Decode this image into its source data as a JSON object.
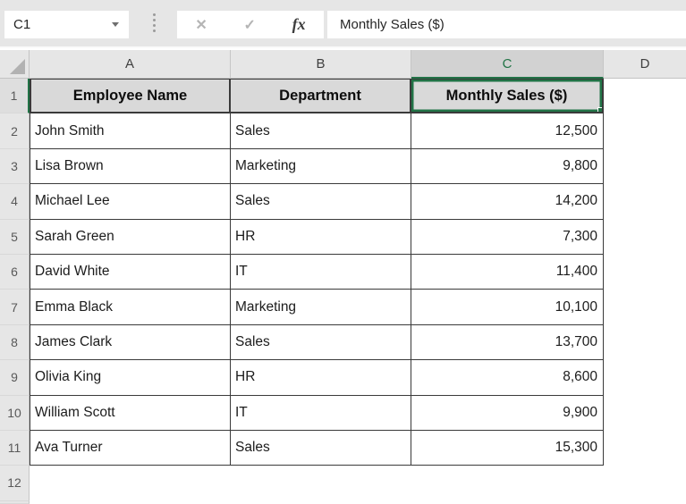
{
  "formula_bar": {
    "name_box_value": "C1",
    "cancel_icon": "✕",
    "enter_icon": "✓",
    "fx_label": "fx",
    "formula_text": "Monthly Sales ($)"
  },
  "grid": {
    "column_headers": [
      "A",
      "B",
      "C",
      "D"
    ],
    "active_column": "C",
    "active_cell": "C1",
    "row_numbers": [
      "1",
      "2",
      "3",
      "4",
      "5",
      "6",
      "7",
      "8",
      "9",
      "10",
      "11",
      "12"
    ]
  },
  "table": {
    "headers": [
      "Employee Name",
      "Department",
      "Monthly Sales ($)"
    ],
    "rows": [
      {
        "name": "John Smith",
        "dept": "Sales",
        "sales": "12,500"
      },
      {
        "name": "Lisa Brown",
        "dept": "Marketing",
        "sales": "9,800"
      },
      {
        "name": "Michael Lee",
        "dept": "Sales",
        "sales": "14,200"
      },
      {
        "name": "Sarah Green",
        "dept": "HR",
        "sales": "7,300"
      },
      {
        "name": "David White",
        "dept": "IT",
        "sales": "11,400"
      },
      {
        "name": "Emma Black",
        "dept": "Marketing",
        "sales": "10,100"
      },
      {
        "name": "James Clark",
        "dept": "Sales",
        "sales": "13,700"
      },
      {
        "name": "Olivia King",
        "dept": "HR",
        "sales": "8,600"
      },
      {
        "name": "William Scott",
        "dept": "IT",
        "sales": "9,900"
      },
      {
        "name": "Ava Turner",
        "dept": "Sales",
        "sales": "15,300"
      }
    ]
  },
  "colors": {
    "accent_green": "#217346",
    "chrome_gray": "#e6e6e6",
    "active_header_fill": "#d2d2d2",
    "table_header_fill": "#d9d9d9",
    "grid_border": "#3a3a3a"
  }
}
